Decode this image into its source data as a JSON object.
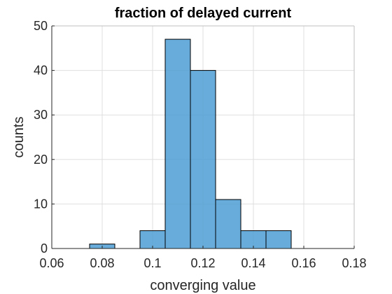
{
  "chart_data": {
    "type": "bar",
    "title": "fraction of delayed current",
    "xlabel": "converging value",
    "ylabel": "counts",
    "xlim": [
      0.06,
      0.18
    ],
    "ylim": [
      0,
      50
    ],
    "xticks": [
      "0.06",
      "0.08",
      "0.1",
      "0.12",
      "0.14",
      "0.16",
      "0.18"
    ],
    "xtick_values": [
      0.06,
      0.08,
      0.1,
      0.12,
      0.14,
      0.16,
      0.18
    ],
    "yticks": [
      "0",
      "10",
      "20",
      "30",
      "40",
      "50"
    ],
    "ytick_values": [
      0,
      10,
      20,
      30,
      40,
      50
    ],
    "grid": true,
    "bar_color": "#4d9dd5",
    "bins": [
      {
        "x0": 0.075,
        "x1": 0.085,
        "count": 1
      },
      {
        "x0": 0.085,
        "x1": 0.095,
        "count": 0
      },
      {
        "x0": 0.095,
        "x1": 0.105,
        "count": 4
      },
      {
        "x0": 0.105,
        "x1": 0.115,
        "count": 47
      },
      {
        "x0": 0.115,
        "x1": 0.125,
        "count": 40
      },
      {
        "x0": 0.125,
        "x1": 0.135,
        "count": 11
      },
      {
        "x0": 0.135,
        "x1": 0.145,
        "count": 4
      },
      {
        "x0": 0.145,
        "x1": 0.155,
        "count": 4
      }
    ]
  }
}
